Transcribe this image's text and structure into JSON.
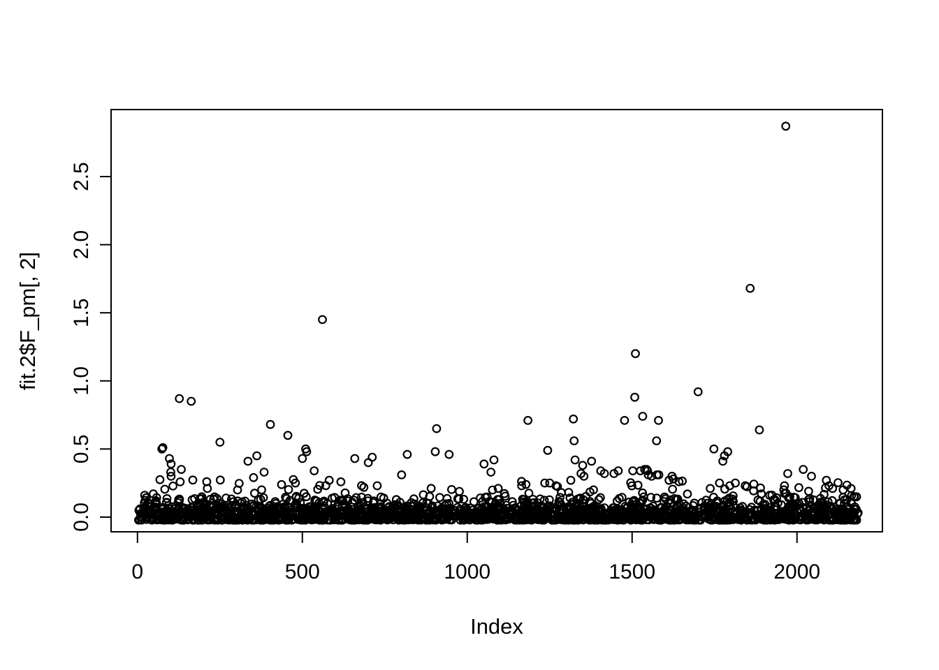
{
  "chart_data": {
    "type": "scatter",
    "title": "",
    "xlabel": "Index",
    "ylabel": "fit.2$F_pm[, 2]",
    "x_tick_labels": [
      "0",
      "500",
      "1000",
      "1500",
      "2000"
    ],
    "x_tick_values": [
      0,
      500,
      1000,
      1500,
      2000
    ],
    "y_tick_labels": [
      "0.0",
      "0.5",
      "1.0",
      "1.5",
      "2.0",
      "2.5"
    ],
    "y_tick_values": [
      0.0,
      0.5,
      1.0,
      1.5,
      2.0,
      2.5
    ],
    "xlim": [
      -80,
      2259
    ],
    "ylim": [
      -0.108,
      2.992
    ],
    "grid": false,
    "legend": "none",
    "n_points_approx": 2186,
    "x_data_range": [
      1,
      2186
    ],
    "marker": "open-circle",
    "marker_color": "#000000",
    "background_color": "#ffffff",
    "feature_points": [
      [
        1966,
        2.87
      ],
      [
        1858,
        1.68
      ],
      [
        561,
        1.45
      ],
      [
        1510,
        1.2
      ],
      [
        1700,
        0.92
      ],
      [
        1508,
        0.88
      ],
      [
        127,
        0.87
      ],
      [
        163,
        0.85
      ],
      [
        1532,
        0.74
      ],
      [
        1322,
        0.72
      ],
      [
        1184,
        0.71
      ],
      [
        1477,
        0.71
      ],
      [
        1580,
        0.71
      ],
      [
        403,
        0.68
      ],
      [
        907,
        0.65
      ],
      [
        1886,
        0.64
      ],
      [
        456,
        0.6
      ],
      [
        1324,
        0.56
      ],
      [
        1574,
        0.56
      ],
      [
        250,
        0.55
      ],
      [
        74,
        0.5
      ],
      [
        77,
        0.51
      ],
      [
        510,
        0.5
      ],
      [
        513,
        0.48
      ],
      [
        1244,
        0.49
      ],
      [
        1748,
        0.5
      ],
      [
        903,
        0.48
      ],
      [
        1790,
        0.48
      ],
      [
        945,
        0.46
      ],
      [
        818,
        0.46
      ],
      [
        1780,
        0.45
      ],
      [
        362,
        0.45
      ],
      [
        712,
        0.44
      ],
      [
        500,
        0.43
      ],
      [
        97,
        0.43
      ],
      [
        659,
        0.43
      ],
      [
        1081,
        0.42
      ],
      [
        1327,
        0.42
      ],
      [
        335,
        0.41
      ],
      [
        1377,
        0.41
      ],
      [
        1775,
        0.41
      ],
      [
        700,
        0.4
      ],
      [
        102,
        0.39
      ],
      [
        1051,
        0.39
      ],
      [
        1350,
        0.38
      ],
      [
        133,
        0.35
      ],
      [
        2019,
        0.35
      ],
      [
        1538,
        0.35
      ],
      [
        1544,
        0.35
      ],
      [
        536,
        0.34
      ],
      [
        1405,
        0.34
      ],
      [
        1458,
        0.34
      ],
      [
        1502,
        0.34
      ],
      [
        1525,
        0.34
      ],
      [
        1547,
        0.34
      ],
      [
        101,
        0.33
      ],
      [
        384,
        0.33
      ],
      [
        1072,
        0.33
      ],
      [
        1416,
        0.32
      ],
      [
        1445,
        0.32
      ],
      [
        1345,
        0.32
      ],
      [
        1972,
        0.32
      ],
      [
        801,
        0.31
      ],
      [
        1549,
        0.31
      ],
      [
        1575,
        0.31
      ],
      [
        1581,
        0.31
      ],
      [
        102,
        0.3
      ],
      [
        1354,
        0.3
      ],
      [
        1559,
        0.3
      ],
      [
        1621,
        0.3
      ],
      [
        2044,
        0.3
      ],
      [
        352,
        0.29
      ],
      [
        1625,
        0.28
      ],
      [
        1314,
        0.27
      ],
      [
        1612,
        0.27
      ],
      [
        2089,
        0.27
      ],
      [
        210,
        0.26
      ],
      [
        1642,
        0.26
      ],
      [
        479,
        0.25
      ],
      [
        1235,
        0.25
      ],
      [
        1250,
        0.25
      ],
      [
        1765,
        0.25
      ],
      [
        1813,
        0.25
      ],
      [
        1178,
        0.24
      ],
      [
        727,
        0.23
      ],
      [
        1165,
        0.23
      ],
      [
        1796,
        0.23
      ],
      [
        1843,
        0.23
      ],
      [
        1962,
        0.23
      ],
      [
        2097,
        0.23
      ],
      [
        212,
        0.21
      ],
      [
        1737,
        0.21
      ],
      [
        2108,
        0.21
      ],
      [
        2164,
        0.21
      ],
      [
        1960,
        0.2
      ],
      [
        1383,
        0.2
      ],
      [
        2140,
        0.2
      ],
      [
        1892,
        0.17
      ],
      [
        1917,
        0.16
      ],
      [
        22,
        0.16
      ],
      [
        48,
        0.17
      ]
    ],
    "dense_cluster": {
      "description": "Unresolvable solid band of overlapping open circles near y=0 spanning x=1..2186",
      "seed": 42,
      "x_min": 1,
      "x_max": 2186,
      "bands": [
        {
          "count": 1500,
          "y_base": -0.022,
          "y_range": 0.105,
          "power": 2.2
        },
        {
          "count": 430,
          "y_base": 0.02,
          "y_range": 0.13,
          "power": 1.6
        },
        {
          "count": 150,
          "y_base": 0.1,
          "y_range": 0.18,
          "power": 2.0
        }
      ]
    }
  }
}
